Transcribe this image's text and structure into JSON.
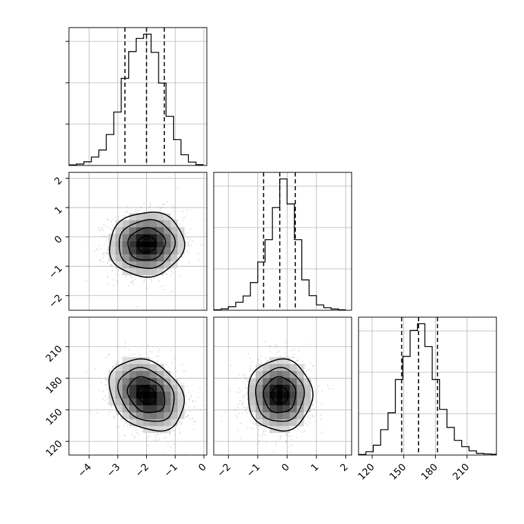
{
  "chart_data": {
    "type": "corner",
    "grid": true,
    "parameters": [
      {
        "range": [
          -4.7,
          0.1
        ],
        "ticks": [
          -4,
          -3,
          -2,
          -1,
          0
        ],
        "tick_labels": [
          "−4",
          "−3",
          "−2",
          "−1",
          "0"
        ],
        "quantiles": [
          -2.75,
          -2.0,
          -1.38
        ],
        "hist_bins": [
          -4.7,
          -4.44,
          -4.18,
          -3.92,
          -3.66,
          -3.4,
          -3.14,
          -2.88,
          -2.62,
          -2.36,
          -2.1,
          -1.84,
          -1.58,
          -1.32,
          -1.06,
          -0.8,
          -0.54,
          -0.28,
          -0.02
        ],
        "hist_counts": [
          2,
          5,
          13,
          30,
          55,
          110,
          190,
          310,
          405,
          452,
          467,
          402,
          293,
          175,
          92,
          38,
          12,
          3
        ]
      },
      {
        "range": [
          -2.5,
          2.2
        ],
        "ticks": [
          -2,
          -1,
          0,
          1,
          2
        ],
        "tick_labels": [
          "−2",
          "−1",
          "0",
          "1",
          "2"
        ],
        "quantiles": [
          -0.8,
          -0.25,
          0.28
        ],
        "hist_bins": [
          -2.5,
          -2.25,
          -2.0,
          -1.75,
          -1.5,
          -1.25,
          -1.0,
          -0.75,
          -0.5,
          -0.25,
          0.0,
          0.25,
          0.5,
          0.75,
          1.0,
          1.25,
          1.5,
          1.75,
          2.0
        ],
        "hist_counts": [
          3,
          8,
          20,
          45,
          80,
          155,
          270,
          395,
          575,
          735,
          595,
          395,
          170,
          82,
          30,
          14,
          7,
          3
        ]
      },
      {
        "range": [
          107,
          238
        ],
        "ticks": [
          120,
          150,
          180,
          210
        ],
        "tick_labels": [
          "120",
          "150",
          "180",
          "210"
        ],
        "quantiles": [
          148,
          164,
          182
        ],
        "hist_bins": [
          107,
          114,
          121,
          128,
          135,
          142,
          149,
          156,
          163,
          170,
          177,
          184,
          191,
          198,
          205,
          212,
          219,
          226,
          233,
          238
        ],
        "hist_counts": [
          2,
          12,
          35,
          90,
          150,
          268,
          350,
          442,
          466,
          385,
          268,
          162,
          98,
          52,
          30,
          15,
          6,
          4,
          3
        ]
      }
    ],
    "joint": [
      {
        "x": 0,
        "y": 1,
        "mean": [
          -2.0,
          -0.25
        ],
        "std": [
          0.65,
          0.55
        ],
        "corr": 0.05,
        "contour_sigma": [
          0.5,
          1.0,
          1.5,
          2.0
        ]
      },
      {
        "x": 0,
        "y": 2,
        "mean": [
          -2.0,
          164
        ],
        "std": [
          0.65,
          17
        ],
        "corr": -0.25,
        "contour_sigma": [
          0.5,
          1.0,
          1.5,
          2.0
        ]
      },
      {
        "x": 1,
        "y": 2,
        "mean": [
          -0.25,
          164
        ],
        "std": [
          0.55,
          17
        ],
        "corr": 0.0,
        "contour_sigma": [
          0.5,
          1.0,
          1.5,
          2.0
        ]
      }
    ]
  }
}
